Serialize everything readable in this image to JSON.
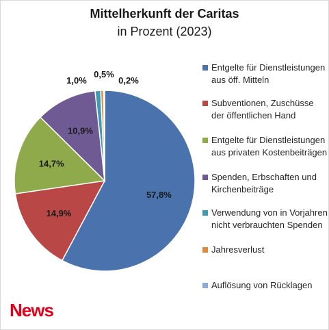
{
  "logo_text": "News",
  "chart_data": {
    "type": "pie",
    "title": "Mittelherkunft  der Caritas",
    "subtitle": "in Prozent (2023)",
    "legend_position": "right",
    "slices": [
      {
        "name": "Entgelte für Dienstleistungen aus öff. Mitteln",
        "value": 57.8,
        "label": "57,8%",
        "color": "#4a72ac"
      },
      {
        "name": "Subventionen, Zuschüsse der öffentlichen Hand",
        "value": 14.9,
        "label": "14,9%",
        "color": "#b94746"
      },
      {
        "name": "Entgelte für Dienstleistungen aus privaten Kostenbeiträgen",
        "value": 14.7,
        "label": "14,7%",
        "color": "#8faa4a"
      },
      {
        "name": "Spenden, Erbschaften und Kirchenbeiträge",
        "value": 10.9,
        "label": "10,9%",
        "color": "#705a93"
      },
      {
        "name": "Verwendung von in Vorjahren nicht verbrauchten Spenden",
        "value": 1.0,
        "label": "1,0%",
        "color": "#3e9bb3"
      },
      {
        "name": "Jahresverlust",
        "value": 0.5,
        "label": "0,5%",
        "color": "#e08a3c"
      },
      {
        "name": "Auflösung von Rücklagen",
        "value": 0.2,
        "label": "0,2%",
        "color": "#8eaad4"
      }
    ]
  }
}
